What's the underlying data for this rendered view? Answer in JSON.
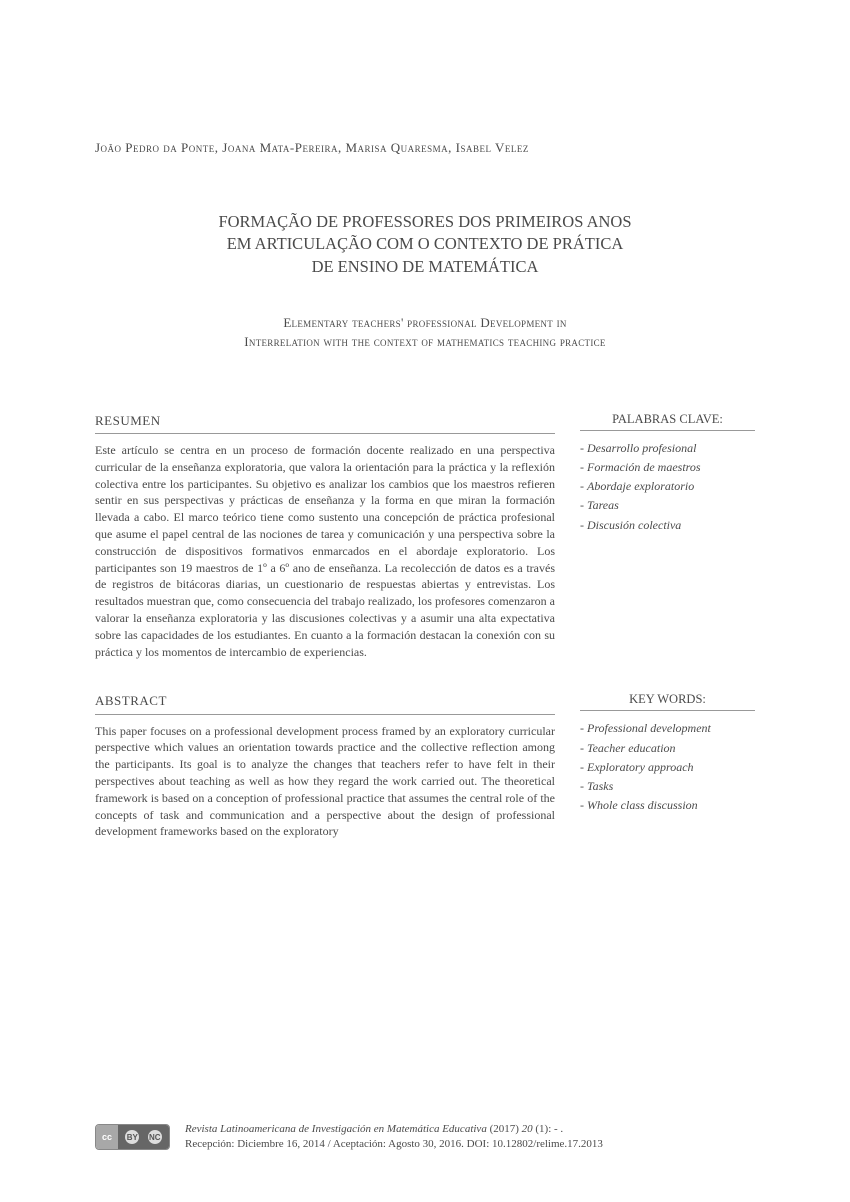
{
  "authors": "João Pedro da Ponte, Joana Mata-Pereira, Marisa Quaresma, Isabel Velez",
  "title_main_line1": "FORMAÇÃO DE PROFESSORES DOS PRIMEIROS ANOS",
  "title_main_line2": "EM ARTICULAÇÃO COM O CONTEXTO DE PRÁTICA",
  "title_main_line3": "DE ENSINO DE MATEMÁTICA",
  "title_sub_line1": "Elementary teachers' professional Development in",
  "title_sub_line2": "Interrelation with the context of mathematics teaching practice",
  "resumen": {
    "header": "RESUMEN",
    "body": "Este artículo se centra en un proceso de formación docente realizado en una perspectiva curricular de la enseñanza exploratoria, que valora la orientación para la práctica y la reflexión colectiva entre los participantes. Su objetivo es analizar los cambios que los maestros refieren sentir en sus perspectivas y prácticas de enseñanza y la forma en que miran la formación llevada a cabo. El marco teórico tiene como sustento una concepción de práctica profesional que asume el papel central de las nociones de tarea y comunicación y una perspectiva sobre la construcción de dispositivos formativos enmarcados en el abordaje exploratorio. Los participantes son 19 maestros de 1º a 6º ano de enseñanza. La recolección de datos es a través de registros de bitácoras diarias, un cuestionario de respuestas abiertas y entrevistas. Los resultados muestran que, como consecuencia del trabajo realizado, los profesores comenzaron a valorar la enseñanza exploratoria y las discusiones colectivas y a asumir una alta expectativa sobre las capacidades de los estudiantes. En cuanto a la formación destacan la conexión con su práctica y los momentos de intercambio de experiencias."
  },
  "palabras_clave": {
    "header": "PALABRAS CLAVE:",
    "items": [
      "Desarrollo profesional",
      "Formación de maestros",
      "Abordaje exploratorio",
      "Tareas",
      "Discusión colectiva"
    ]
  },
  "abstract": {
    "header": "ABSTRACT",
    "body": "This paper focuses on a professional development process framed by an exploratory curricular perspective which values an orientation towards practice and the collective reflection among the participants. Its goal is to analyze the changes that teachers refer to have felt in their perspectives about teaching as well as how they regard the work carried out. The theoretical framework is based on a conception of professional practice that assumes the central role of the concepts of task and communication and a perspective about the design of professional development frameworks based on the exploratory"
  },
  "key_words": {
    "header": "KEY WORDS:",
    "items": [
      "Professional development",
      "Teacher education",
      "Exploratory approach",
      "Tasks",
      "Whole class discussion"
    ]
  },
  "footer": {
    "journal": "Revista Latinoamericana de Investigación en Matemática Educativa",
    "year_vol": " (2017) ",
    "vol": "20",
    "issue": " (1):  - .",
    "line2": "Recepción: Diciembre 16, 2014 / Aceptación: Agosto 30, 2016.  DOI: 10.12802/relime.17.2013",
    "cc_label": "cc",
    "cc_by": "BY",
    "cc_nc": "NC"
  }
}
